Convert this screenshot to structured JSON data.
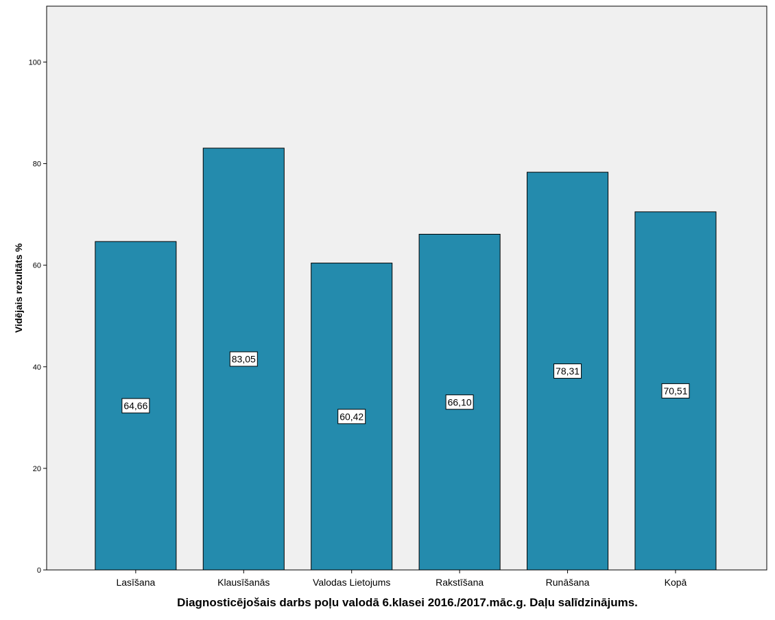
{
  "chart_data": {
    "type": "bar",
    "categories": [
      "Lasīšana",
      "Klausīšanās",
      "Valodas Lietojums",
      "Rakstīšana",
      "Runāšana",
      "Kopā"
    ],
    "values": [
      64.66,
      83.05,
      60.42,
      66.1,
      78.31,
      70.51
    ],
    "data_labels": [
      "64,66",
      "83,05",
      "60,42",
      "66,10",
      "78,31",
      "70,51"
    ],
    "title": "",
    "xlabel": "Diagnosticējošais darbs poļu valodā 6.klasei 2016./2017.māc.g. Daļu salīdzinājums.",
    "ylabel": "Vidējais rezultāts %",
    "ylim": [
      0,
      111
    ],
    "yticks": [
      0,
      20,
      40,
      60,
      80,
      100
    ],
    "grid": false,
    "legend": "none",
    "colors": {
      "bar": "#248bad",
      "plot_bg": "#f0f0f0",
      "bar_border": "#000000"
    }
  }
}
